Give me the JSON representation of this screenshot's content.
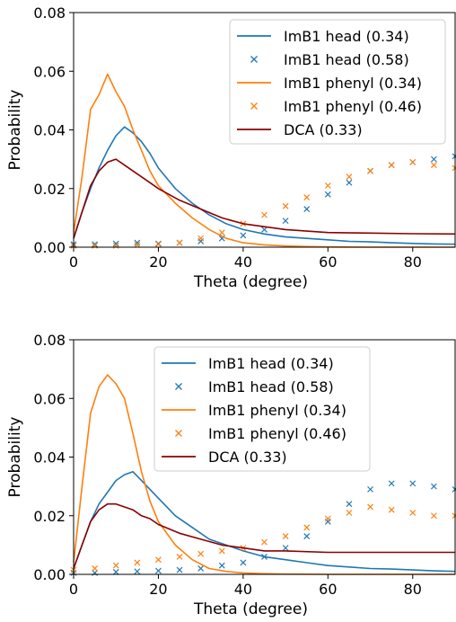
{
  "chart_data": [
    {
      "type": "line",
      "xlabel": "Theta (degree)",
      "ylabel": "Probability",
      "xlim": [
        0,
        90
      ],
      "ylim": [
        0,
        0.08
      ],
      "xticks": [
        0,
        20,
        40,
        60,
        80
      ],
      "yticks": [
        0.0,
        0.02,
        0.04,
        0.06,
        0.08
      ],
      "xtick_labels": [
        "0",
        "20",
        "40",
        "60",
        "80"
      ],
      "ytick_labels": [
        "0.00",
        "0.02",
        "0.04",
        "0.06",
        "0.08"
      ],
      "grid": false,
      "legend_position": "top-right",
      "series": [
        {
          "name": "ImB1 head (0.34)",
          "style": "line",
          "color": "#1f77b4",
          "x": [
            0,
            2,
            4,
            6,
            8,
            10,
            12,
            14,
            16,
            18,
            20,
            24,
            28,
            32,
            36,
            40,
            45,
            50,
            55,
            60,
            65,
            70,
            75,
            80,
            85,
            90
          ],
          "y": [
            0.003,
            0.012,
            0.02,
            0.027,
            0.033,
            0.038,
            0.041,
            0.039,
            0.036,
            0.032,
            0.027,
            0.02,
            0.015,
            0.011,
            0.008,
            0.006,
            0.0045,
            0.0035,
            0.003,
            0.0025,
            0.002,
            0.0018,
            0.0015,
            0.0013,
            0.0011,
            0.001
          ]
        },
        {
          "name": "ImB1 head (0.58)",
          "style": "marker",
          "color": "#1f77b4",
          "x": [
            0,
            5,
            10,
            15,
            20,
            25,
            30,
            35,
            40,
            45,
            50,
            55,
            60,
            65,
            70,
            75,
            80,
            85,
            90
          ],
          "y": [
            0.001,
            0.001,
            0.0012,
            0.0015,
            0.0012,
            0.0015,
            0.002,
            0.003,
            0.004,
            0.006,
            0.009,
            0.013,
            0.018,
            0.022,
            0.026,
            0.028,
            0.029,
            0.03,
            0.031
          ]
        },
        {
          "name": "ImB1 phenyl (0.34)",
          "style": "line",
          "color": "#ff7f0e",
          "x": [
            0,
            2,
            4,
            6,
            8,
            10,
            12,
            14,
            16,
            18,
            20,
            24,
            28,
            32,
            36,
            40,
            45,
            50,
            55,
            60,
            70,
            80,
            90
          ],
          "y": [
            0.005,
            0.024,
            0.047,
            0.052,
            0.059,
            0.053,
            0.048,
            0.04,
            0.033,
            0.026,
            0.021,
            0.015,
            0.01,
            0.006,
            0.003,
            0.0015,
            0.0008,
            0.0004,
            0.0002,
            0.0001,
            0.0,
            0.0,
            0.0
          ]
        },
        {
          "name": "ImB1 phenyl (0.46)",
          "style": "marker",
          "color": "#ff7f0e",
          "x": [
            0,
            5,
            10,
            15,
            20,
            25,
            30,
            35,
            40,
            45,
            50,
            55,
            60,
            65,
            70,
            75,
            80,
            85,
            90
          ],
          "y": [
            0.0005,
            0.0005,
            0.0005,
            0.0008,
            0.001,
            0.0015,
            0.003,
            0.005,
            0.008,
            0.011,
            0.014,
            0.017,
            0.021,
            0.024,
            0.026,
            0.028,
            0.029,
            0.028,
            0.027
          ]
        },
        {
          "name": "DCA (0.33)",
          "style": "line",
          "color": "#8b0000",
          "x": [
            0,
            2,
            4,
            6,
            8,
            10,
            12,
            14,
            16,
            18,
            20,
            25,
            30,
            35,
            40,
            45,
            50,
            60,
            70,
            80,
            90
          ],
          "y": [
            0.003,
            0.012,
            0.021,
            0.026,
            0.029,
            0.03,
            0.028,
            0.026,
            0.024,
            0.022,
            0.02,
            0.016,
            0.013,
            0.01,
            0.008,
            0.007,
            0.006,
            0.005,
            0.0048,
            0.0046,
            0.0045
          ]
        }
      ]
    },
    {
      "type": "line",
      "xlabel": "Theta (degree)",
      "ylabel": "Probability",
      "xlim": [
        0,
        90
      ],
      "ylim": [
        0,
        0.08
      ],
      "xticks": [
        0,
        20,
        40,
        60,
        80
      ],
      "yticks": [
        0.0,
        0.02,
        0.04,
        0.06,
        0.08
      ],
      "xtick_labels": [
        "0",
        "20",
        "40",
        "60",
        "80"
      ],
      "ytick_labels": [
        "0.00",
        "0.02",
        "0.04",
        "0.06",
        "0.08"
      ],
      "grid": false,
      "legend_position": "top-center",
      "series": [
        {
          "name": "ImB1 head (0.34)",
          "style": "line",
          "color": "#1f77b4",
          "x": [
            0,
            2,
            4,
            6,
            8,
            10,
            12,
            14,
            16,
            18,
            20,
            24,
            28,
            32,
            36,
            40,
            45,
            50,
            55,
            60,
            65,
            70,
            75,
            80,
            85,
            90
          ],
          "y": [
            0.002,
            0.01,
            0.018,
            0.024,
            0.028,
            0.032,
            0.034,
            0.035,
            0.032,
            0.029,
            0.026,
            0.02,
            0.016,
            0.012,
            0.01,
            0.008,
            0.006,
            0.005,
            0.004,
            0.003,
            0.0025,
            0.002,
            0.0018,
            0.0015,
            0.0012,
            0.001
          ]
        },
        {
          "name": "ImB1 head (0.58)",
          "style": "marker",
          "color": "#1f77b4",
          "x": [
            0,
            5,
            10,
            15,
            20,
            25,
            30,
            35,
            40,
            45,
            50,
            55,
            60,
            65,
            70,
            75,
            80,
            85,
            90
          ],
          "y": [
            0.0005,
            0.0005,
            0.0008,
            0.001,
            0.0012,
            0.0015,
            0.002,
            0.003,
            0.004,
            0.006,
            0.009,
            0.013,
            0.018,
            0.024,
            0.029,
            0.031,
            0.031,
            0.03,
            0.029
          ]
        },
        {
          "name": "ImB1 phenyl (0.34)",
          "style": "line",
          "color": "#ff7f0e",
          "x": [
            0,
            2,
            4,
            6,
            8,
            10,
            12,
            14,
            16,
            18,
            20,
            24,
            28,
            32,
            36,
            40,
            45,
            50,
            60,
            70,
            80,
            90
          ],
          "y": [
            0.004,
            0.03,
            0.055,
            0.064,
            0.068,
            0.065,
            0.06,
            0.048,
            0.035,
            0.025,
            0.018,
            0.01,
            0.005,
            0.002,
            0.001,
            0.0005,
            0.0002,
            0.0001,
            0.0,
            0.0,
            0.0,
            0.0
          ]
        },
        {
          "name": "ImB1 phenyl (0.46)",
          "style": "marker",
          "color": "#ff7f0e",
          "x": [
            0,
            5,
            10,
            15,
            20,
            25,
            30,
            35,
            40,
            45,
            50,
            55,
            60,
            65,
            70,
            75,
            80,
            85,
            90
          ],
          "y": [
            0.0015,
            0.002,
            0.003,
            0.004,
            0.005,
            0.006,
            0.007,
            0.008,
            0.009,
            0.011,
            0.013,
            0.016,
            0.019,
            0.021,
            0.023,
            0.022,
            0.021,
            0.02,
            0.02
          ]
        },
        {
          "name": "DCA (0.33)",
          "style": "line",
          "color": "#8b0000",
          "x": [
            0,
            2,
            4,
            6,
            8,
            10,
            12,
            14,
            16,
            18,
            20,
            25,
            30,
            35,
            40,
            45,
            50,
            60,
            70,
            80,
            90
          ],
          "y": [
            0.002,
            0.01,
            0.018,
            0.022,
            0.024,
            0.024,
            0.023,
            0.022,
            0.02,
            0.019,
            0.017,
            0.014,
            0.012,
            0.01,
            0.009,
            0.008,
            0.008,
            0.0075,
            0.0075,
            0.0075,
            0.0075
          ]
        }
      ]
    }
  ]
}
